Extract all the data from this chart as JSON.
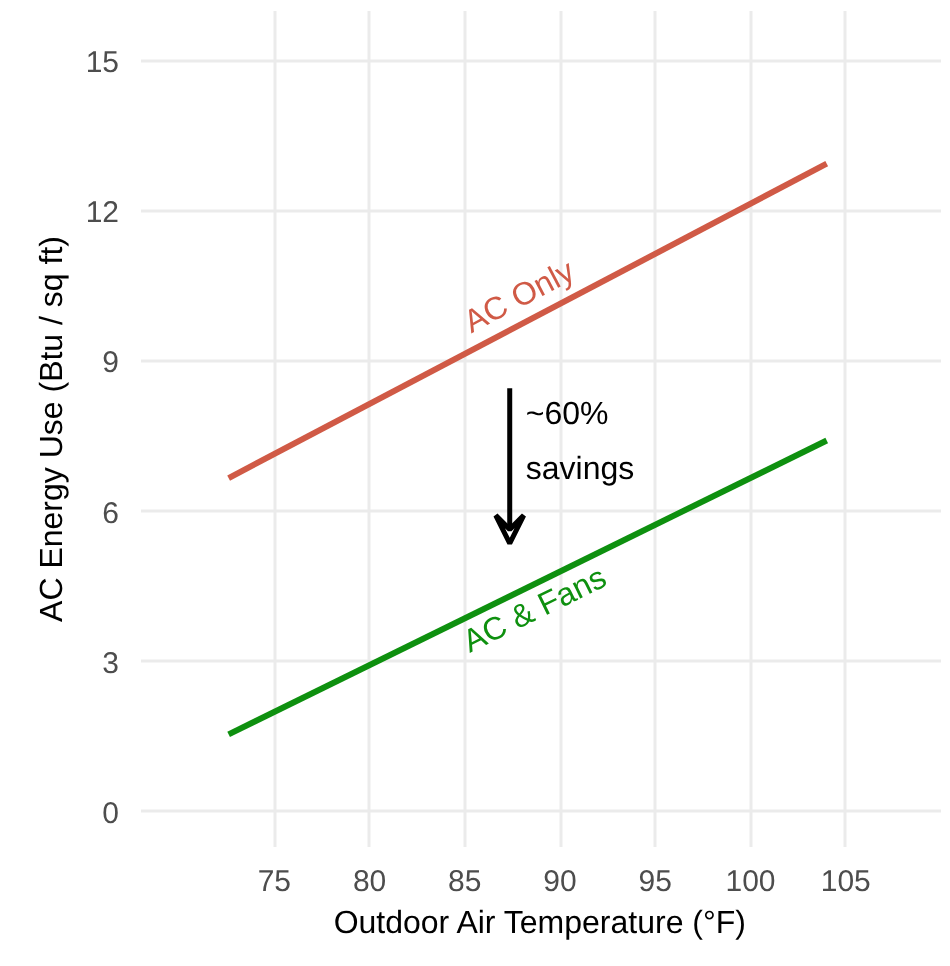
{
  "chart_data": {
    "type": "line",
    "xlabel": "Outdoor Air Temperature (°F)",
    "ylabel": "AC Energy Use (Btu / sq ft)",
    "x": [
      72.6,
      104
    ],
    "series": [
      {
        "name": "AC Only",
        "color": "#d05a46",
        "values": [
          6.67,
          12.95
        ]
      },
      {
        "name": "AC & Fans",
        "color": "#0e900f",
        "values": [
          1.55,
          7.42
        ]
      }
    ],
    "annotations": [
      "~60%\nsavings"
    ],
    "xlim": [
      68,
      110
    ],
    "xticks": [
      75,
      80,
      85,
      90,
      95,
      100,
      105
    ],
    "ylim": [
      -0.7,
      16
    ],
    "yticks": [
      0,
      3,
      6,
      9,
      12,
      15
    ],
    "grid": true,
    "marker": "none",
    "line_style": "solid"
  }
}
